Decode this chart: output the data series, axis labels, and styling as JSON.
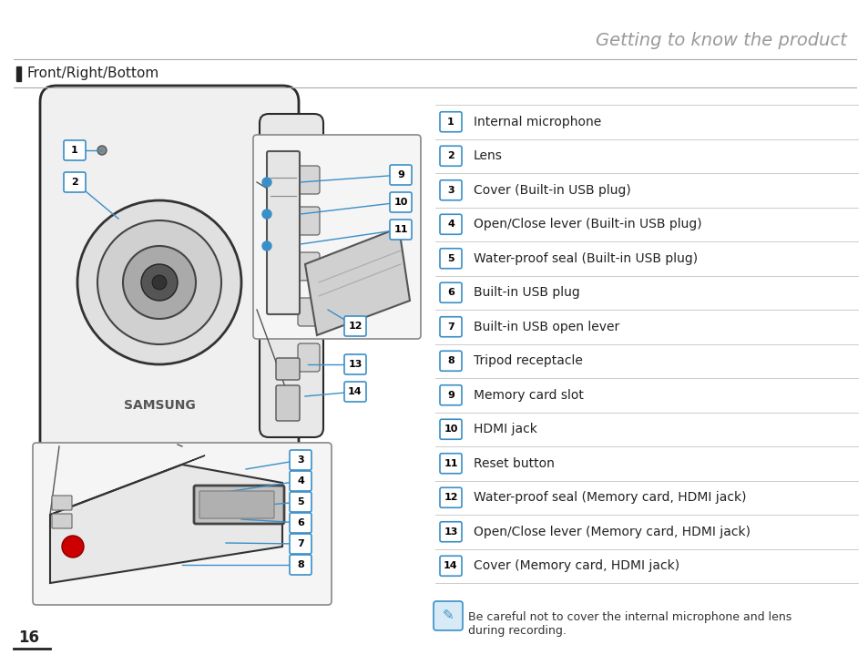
{
  "title": "Getting to know the product",
  "section": "Front/Right/Bottom",
  "page_number": "16",
  "bg_color": "#ffffff",
  "title_color": "#999999",
  "section_color": "#222222",
  "label_items": [
    {
      "num": "1",
      "text": "Internal microphone"
    },
    {
      "num": "2",
      "text": "Lens"
    },
    {
      "num": "3",
      "text": "Cover (Built-in USB plug)"
    },
    {
      "num": "4",
      "text": "Open/Close lever (Built-in USB plug)"
    },
    {
      "num": "5",
      "text": "Water-proof seal (Built-in USB plug)"
    },
    {
      "num": "6",
      "text": "Built-in USB plug"
    },
    {
      "num": "7",
      "text": "Built-in USB open lever"
    },
    {
      "num": "8",
      "text": "Tripod receptacle"
    },
    {
      "num": "9",
      "text": "Memory card slot"
    },
    {
      "num": "10",
      "text": "HDMI jack"
    },
    {
      "num": "11",
      "text": "Reset button"
    },
    {
      "num": "12",
      "text": "Water-proof seal (Memory card, HDMI jack)"
    },
    {
      "num": "13",
      "text": "Open/Close lever (Memory card, HDMI jack)"
    },
    {
      "num": "14",
      "text": "Cover (Memory card, HDMI jack)"
    }
  ],
  "note_text": "Be careful not to cover the internal microphone and lens\nduring recording.",
  "badge_color": "#3a8fc7",
  "line_color": "#cccccc",
  "title_fontsize": 14,
  "section_fontsize": 11,
  "list_fontsize": 10,
  "note_fontsize": 9
}
